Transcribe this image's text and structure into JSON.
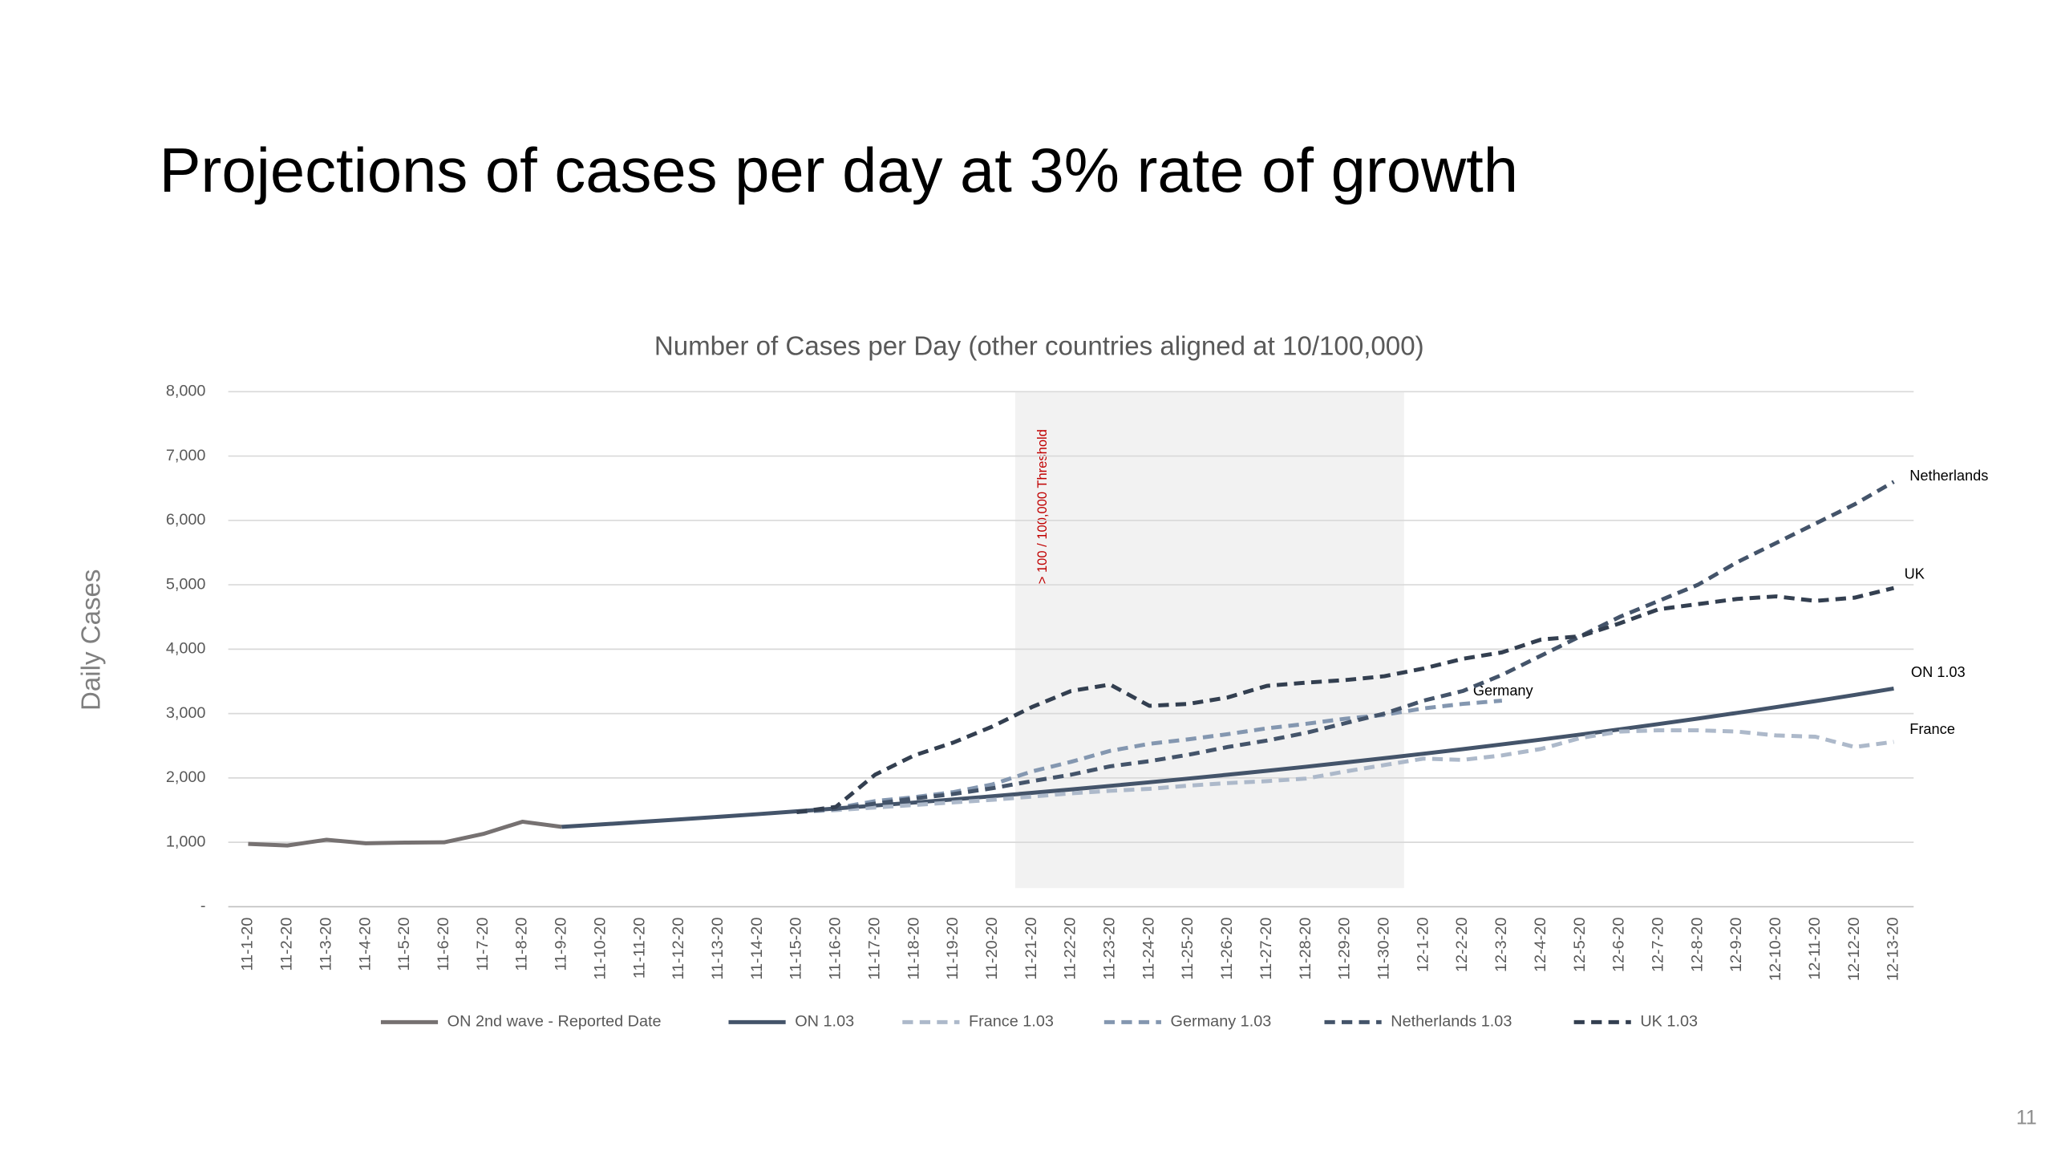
{
  "title": "Projections of cases per day at 3% rate of growth",
  "page_number": "11",
  "chart_data": {
    "type": "line",
    "title": "Number of Cases per Day (other countries aligned at 10/100,000)",
    "y_label": "Daily Cases",
    "threshold_label": "> 100 / 100,000 Threshold",
    "categories": [
      "11-1-20",
      "11-2-20",
      "11-3-20",
      "11-4-20",
      "11-5-20",
      "11-6-20",
      "11-7-20",
      "11-8-20",
      "11-9-20",
      "11-10-20",
      "11-11-20",
      "11-12-20",
      "11-13-20",
      "11-14-20",
      "11-15-20",
      "11-16-20",
      "11-17-20",
      "11-18-20",
      "11-19-20",
      "11-20-20",
      "11-21-20",
      "11-22-20",
      "11-23-20",
      "11-24-20",
      "11-25-20",
      "11-26-20",
      "11-27-20",
      "11-28-20",
      "11-29-20",
      "11-30-20",
      "12-1-20",
      "12-2-20",
      "12-3-20",
      "12-4-20",
      "12-5-20",
      "12-6-20",
      "12-7-20",
      "12-8-20",
      "12-9-20",
      "12-10-20",
      "12-11-20",
      "12-12-20",
      "12-13-20"
    ],
    "ylim": [
      0,
      8000
    ],
    "yticks": [
      {
        "value": 0,
        "label": "-"
      },
      {
        "value": 1000,
        "label": "1,000"
      },
      {
        "value": 2000,
        "label": "2,000"
      },
      {
        "value": 3000,
        "label": "3,000"
      },
      {
        "value": 4000,
        "label": "4,000"
      },
      {
        "value": 5000,
        "label": "5,000"
      },
      {
        "value": 6000,
        "label": "6,000"
      },
      {
        "value": 7000,
        "label": "7,000"
      },
      {
        "value": 8000,
        "label": "8,000"
      }
    ],
    "grid": true,
    "legend": "bottom",
    "series": [
      {
        "name": "ON 2nd wave - Reported Date",
        "color": "#767171",
        "dashed": false,
        "values": [
          975,
          950,
          1040,
          985,
          995,
          1000,
          1130,
          1320,
          1240,
          null,
          null,
          null,
          null,
          null,
          null,
          null,
          null,
          null,
          null,
          null,
          null,
          null,
          null,
          null,
          null,
          null,
          null,
          null,
          null,
          null,
          null,
          null,
          null,
          null,
          null,
          null,
          null,
          null,
          null,
          null,
          null,
          null,
          null
        ]
      },
      {
        "name": "ON 1.03",
        "color": "#44546a",
        "dashed": false,
        "values": [
          null,
          null,
          null,
          null,
          null,
          null,
          null,
          null,
          1240,
          1277,
          1316,
          1355,
          1396,
          1437,
          1481,
          1525,
          1571,
          1618,
          1666,
          1716,
          1768,
          1821,
          1876,
          1932,
          1990,
          2050,
          2111,
          2174,
          2240,
          2307,
          2376,
          2447,
          2521,
          2596,
          2674,
          2754,
          2837,
          2922,
          3010,
          3100,
          3193,
          3289,
          3388
        ]
      },
      {
        "name": "France 1.03",
        "color": "#adb9ca",
        "dashed": true,
        "values": [
          null,
          null,
          null,
          null,
          null,
          null,
          null,
          null,
          null,
          null,
          null,
          null,
          null,
          null,
          1470,
          1500,
          1540,
          1580,
          1620,
          1660,
          1710,
          1760,
          1800,
          1830,
          1880,
          1920,
          1950,
          1990,
          2100,
          2200,
          2300,
          2280,
          2350,
          2450,
          2620,
          2720,
          2740,
          2740,
          2720,
          2660,
          2640,
          2480,
          2560
        ]
      },
      {
        "name": "Germany 1.03",
        "color": "#8497b0",
        "dashed": true,
        "values": [
          null,
          null,
          null,
          null,
          null,
          null,
          null,
          null,
          null,
          null,
          null,
          null,
          null,
          null,
          1470,
          1530,
          1640,
          1700,
          1780,
          1900,
          2100,
          2250,
          2420,
          2530,
          2600,
          2680,
          2770,
          2840,
          2920,
          2980,
          3080,
          3150,
          3200,
          null,
          null,
          null,
          null,
          null,
          null,
          null,
          null,
          null,
          null
        ]
      },
      {
        "name": "Netherlands 1.03",
        "color": "#44546a",
        "dashed": true,
        "values": [
          null,
          null,
          null,
          null,
          null,
          null,
          null,
          null,
          null,
          null,
          null,
          null,
          null,
          null,
          1470,
          1520,
          1600,
          1680,
          1750,
          1840,
          1950,
          2050,
          2180,
          2260,
          2360,
          2480,
          2580,
          2700,
          2850,
          3000,
          3200,
          3350,
          3600,
          3900,
          4200,
          4500,
          4750,
          5000,
          5350,
          5650,
          5950,
          6250,
          6600
        ]
      },
      {
        "name": "UK 1.03",
        "color": "#333f50",
        "dashed": true,
        "values": [
          null,
          null,
          null,
          null,
          null,
          null,
          null,
          null,
          null,
          null,
          null,
          null,
          null,
          null,
          1470,
          1550,
          2050,
          2350,
          2550,
          2800,
          3100,
          3350,
          3450,
          3120,
          3150,
          3250,
          3430,
          3480,
          3520,
          3580,
          3700,
          3850,
          3950,
          4150,
          4200,
          4400,
          4620,
          4700,
          4780,
          4820,
          4750,
          4800,
          4950
        ]
      }
    ],
    "annotations": [
      "Netherlands",
      "UK",
      "ON 1.03",
      "France",
      "Germany"
    ]
  }
}
